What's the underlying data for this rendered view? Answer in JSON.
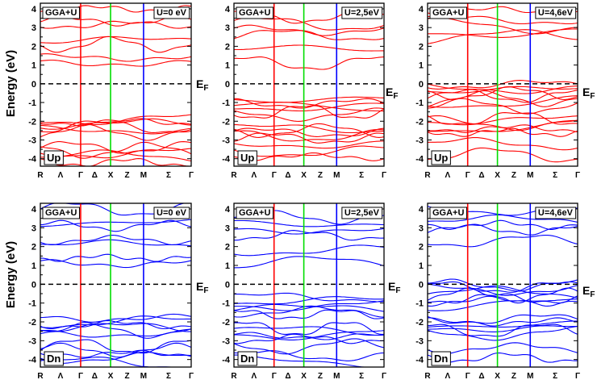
{
  "figure": {
    "y_axis_label": "Energy (eV)",
    "fermi_label": "E",
    "fermi_subscript": "F"
  },
  "chart_data": [
    {
      "type": "line",
      "title_left": "GGA+U",
      "title_right": "U=0 eV",
      "spin_label": "Up",
      "color": "#ff0000",
      "ylim": [
        -4.4,
        4.3
      ],
      "yticks": [
        -4,
        -3,
        -2,
        -1,
        0,
        1,
        2,
        3,
        4
      ],
      "k_labels": [
        "R",
        "Λ",
        "Γ",
        "Δ",
        "X",
        "Z",
        "M",
        "Σ",
        "Γ"
      ],
      "k_positions": [
        0,
        0.33,
        0.66,
        0.89,
        1.15,
        1.42,
        1.69,
        2.1,
        2.47
      ],
      "symmetry_lines": [
        {
          "x": 0.66,
          "color": "#ff0000"
        },
        {
          "x": 1.15,
          "color": "#00dd00"
        },
        {
          "x": 1.69,
          "color": "#0000ff"
        }
      ],
      "bands_approx": [
        -4.2,
        -3.9,
        -3.7,
        -3.55,
        -3.4,
        -2.6,
        -2.45,
        -2.3,
        -2.15,
        -2.05,
        -1.9,
        1.1,
        1.4,
        2.1,
        2.3,
        3.15,
        3.35,
        4.0
      ],
      "fermi_level": 0
    },
    {
      "type": "line",
      "title_left": "GGA+U",
      "title_right": "U=2,5eV",
      "spin_label": "Up",
      "color": "#ff0000",
      "ylim": [
        -4.4,
        4.3
      ],
      "yticks": [
        -4,
        -3,
        -2,
        -1,
        0,
        1,
        2,
        3,
        4
      ],
      "k_labels": [
        "R",
        "Λ",
        "Γ",
        "Δ",
        "X",
        "Z",
        "M",
        "Σ",
        "Γ"
      ],
      "k_positions": [
        0,
        0.33,
        0.66,
        0.89,
        1.15,
        1.42,
        1.69,
        2.1,
        2.47
      ],
      "symmetry_lines": [
        {
          "x": 0.66,
          "color": "#ff0000"
        },
        {
          "x": 1.15,
          "color": "#00dd00"
        },
        {
          "x": 1.69,
          "color": "#0000ff"
        }
      ],
      "bands_approx": [
        -3.9,
        -3.6,
        -3.2,
        -2.9,
        -2.75,
        -2.6,
        -2.5,
        -2.4,
        -1.65,
        -1.5,
        -1.35,
        -1.2,
        -1.05,
        -0.8,
        1.1,
        1.8,
        2.6,
        2.85,
        3.2,
        3.55
      ],
      "fermi_level": 0
    },
    {
      "type": "line",
      "title_left": "GGA+U",
      "title_right": "U=4,6eV",
      "spin_label": "Up",
      "color": "#ff0000",
      "ylim": [
        -4.4,
        4.3
      ],
      "yticks": [
        -4,
        -3,
        -2,
        -1,
        0,
        1,
        2,
        3,
        4
      ],
      "k_labels": [
        "R",
        "Λ",
        "Γ",
        "Δ",
        "X",
        "Z",
        "M",
        "Σ",
        "Γ"
      ],
      "k_positions": [
        0,
        0.33,
        0.66,
        0.89,
        1.15,
        1.42,
        1.69,
        2.1,
        2.47
      ],
      "symmetry_lines": [
        {
          "x": 0.66,
          "color": "#ff0000"
        },
        {
          "x": 1.15,
          "color": "#00dd00"
        },
        {
          "x": 1.69,
          "color": "#0000ff"
        }
      ],
      "bands_approx": [
        -3.8,
        -3.2,
        -2.6,
        -2.4,
        -2.25,
        -2.1,
        -1.95,
        -1.85,
        -1.2,
        -0.95,
        -0.8,
        -0.65,
        -0.5,
        -0.35,
        -0.2,
        -0.05,
        2.5,
        2.8,
        3.1,
        3.4,
        3.9
      ],
      "fermi_level": 0
    },
    {
      "type": "line",
      "title_left": "GGA+U",
      "title_right": "U=0 eV",
      "spin_label": "Dn",
      "color": "#0000ff",
      "ylim": [
        -4.4,
        4.3
      ],
      "yticks": [
        -4,
        -3,
        -2,
        -1,
        0,
        1,
        2,
        3,
        4
      ],
      "k_labels": [
        "R",
        "Λ",
        "Γ",
        "Δ",
        "X",
        "Z",
        "M",
        "Σ",
        "Γ"
      ],
      "k_positions": [
        0,
        0.33,
        0.66,
        0.89,
        1.15,
        1.42,
        1.69,
        2.1,
        2.47
      ],
      "symmetry_lines": [
        {
          "x": 0.66,
          "color": "#ff0000"
        },
        {
          "x": 1.15,
          "color": "#00dd00"
        },
        {
          "x": 1.69,
          "color": "#0000ff"
        }
      ],
      "bands_approx": [
        -4.2,
        -3.9,
        -3.7,
        -3.5,
        -3.3,
        -2.6,
        -2.45,
        -2.3,
        -2.15,
        -2.0,
        -1.8,
        1.1,
        1.4,
        2.1,
        2.35,
        3.1,
        3.3,
        4.0
      ],
      "fermi_level": 0
    },
    {
      "type": "line",
      "title_left": "GGA+U",
      "title_right": "U=2,5eV",
      "spin_label": "Dn",
      "color": "#0000ff",
      "ylim": [
        -4.4,
        4.3
      ],
      "yticks": [
        -4,
        -3,
        -2,
        -1,
        0,
        1,
        2,
        3,
        4
      ],
      "k_labels": [
        "R",
        "Λ",
        "Γ",
        "Δ",
        "X",
        "Z",
        "M",
        "Σ",
        "Γ"
      ],
      "k_positions": [
        0,
        0.33,
        0.66,
        0.89,
        1.15,
        1.42,
        1.69,
        2.1,
        2.47
      ],
      "symmetry_lines": [
        {
          "x": 0.66,
          "color": "#ff0000"
        },
        {
          "x": 1.15,
          "color": "#00dd00"
        },
        {
          "x": 1.69,
          "color": "#0000ff"
        }
      ],
      "bands_approx": [
        -4.1,
        -3.8,
        -3.3,
        -2.9,
        -2.75,
        -2.6,
        -2.5,
        -2.35,
        -1.6,
        -1.45,
        -1.3,
        -1.1,
        -0.9,
        -0.7,
        1.1,
        1.8,
        2.6,
        2.9,
        3.25,
        3.55
      ],
      "fermi_level": 0
    },
    {
      "type": "line",
      "title_left": "GGA+U",
      "title_right": "U=4,6eV",
      "spin_label": "Dn",
      "color": "#0000ff",
      "ylim": [
        -4.4,
        4.3
      ],
      "yticks": [
        -4,
        -3,
        -2,
        -1,
        0,
        1,
        2,
        3,
        4
      ],
      "k_labels": [
        "R",
        "Λ",
        "Γ",
        "Δ",
        "X",
        "Z",
        "M",
        "Σ",
        "Γ"
      ],
      "k_positions": [
        0,
        0.33,
        0.66,
        0.89,
        1.15,
        1.42,
        1.69,
        2.1,
        2.47
      ],
      "symmetry_lines": [
        {
          "x": 0.66,
          "color": "#ff0000"
        },
        {
          "x": 1.15,
          "color": "#00dd00"
        },
        {
          "x": 1.69,
          "color": "#0000ff"
        }
      ],
      "bands_approx": [
        -3.9,
        -3.4,
        -2.6,
        -2.45,
        -2.3,
        -2.15,
        -2.0,
        -1.85,
        -1.1,
        -0.9,
        -0.75,
        -0.6,
        -0.45,
        -0.3,
        -0.15,
        -0.05,
        2.3,
        2.9,
        3.15,
        3.4,
        3.95
      ],
      "fermi_level": 0
    }
  ]
}
